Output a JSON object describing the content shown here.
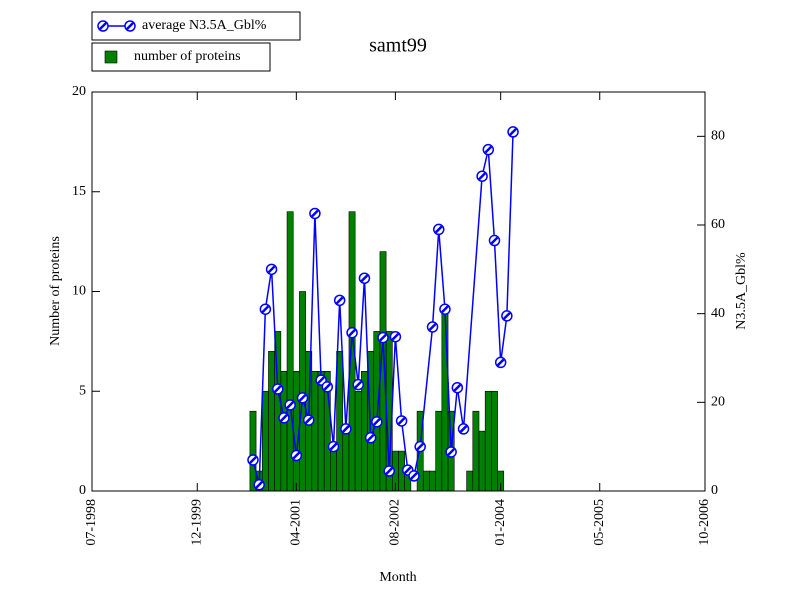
{
  "chart_data": {
    "type": "bar_line",
    "title": "samt99",
    "x_label": "Month",
    "y_label": "Number of proteins",
    "y2_label": "N3.5A_Gbl%",
    "xlim": [
      "1998-07",
      "2006-10"
    ],
    "xticks": [
      {
        "value": "1998-07",
        "label": "07-1998"
      },
      {
        "value": "1999-12",
        "label": "12-1999"
      },
      {
        "value": "2001-04",
        "label": "04-2001"
      },
      {
        "value": "2002-08",
        "label": "08-2002"
      },
      {
        "value": "2004-01",
        "label": "01-2004"
      },
      {
        "value": "2005-05",
        "label": "05-2005"
      },
      {
        "value": "2006-10",
        "label": "10-2006"
      }
    ],
    "ylim": [
      0,
      20
    ],
    "yticks": [
      0,
      5,
      10,
      15,
      20
    ],
    "y2lim": [
      0,
      90
    ],
    "y2ticks": [
      0,
      20,
      40,
      60,
      80
    ],
    "legend": "top-left",
    "series": [
      {
        "name": "number of proteins",
        "type": "bar",
        "color": "#008000",
        "x": [
          "2000-09",
          "2000-10",
          "2000-11",
          "2000-12",
          "2001-01",
          "2001-02",
          "2001-03",
          "2001-04",
          "2001-05",
          "2001-06",
          "2001-07",
          "2001-08",
          "2001-09",
          "2001-10",
          "2001-11",
          "2001-12",
          "2002-01",
          "2002-02",
          "2002-03",
          "2002-04",
          "2002-05",
          "2002-06",
          "2002-07",
          "2002-08",
          "2002-09",
          "2002-10",
          "2002-11",
          "2002-12",
          "2003-01",
          "2003-02",
          "2003-03",
          "2003-04",
          "2003-05",
          "2003-06",
          "2003-07",
          "2003-08",
          "2003-09",
          "2003-10",
          "2003-11",
          "2003-12",
          "2004-01"
        ],
        "values": [
          4,
          1,
          5,
          7,
          8,
          6,
          14,
          6,
          10,
          7,
          6,
          6,
          6,
          2,
          7,
          3,
          14,
          5,
          6,
          7,
          8,
          12,
          8,
          2,
          2,
          1,
          0,
          4,
          1,
          1,
          4,
          9,
          4,
          0,
          0,
          1,
          4,
          3,
          5,
          5,
          1
        ]
      },
      {
        "name": "average N3.5A_Gbl%",
        "type": "line",
        "color": "#0000ff",
        "axis": "y2",
        "x": [
          "2000-09",
          "2000-10",
          "2000-11",
          "2000-12",
          "2001-01",
          "2001-02",
          "2001-03",
          "2001-04",
          "2001-05",
          "2001-06",
          "2001-07",
          "2001-08",
          "2001-09",
          "2001-10",
          "2001-11",
          "2001-12",
          "2002-01",
          "2002-02",
          "2002-03",
          "2002-04",
          "2002-05",
          "2002-06",
          "2002-07",
          "2002-08",
          "2002-09",
          "2002-10",
          "2002-11",
          "2002-12",
          "2003-02",
          "2003-03",
          "2003-04",
          "2003-05",
          "2003-06",
          "2003-07",
          "2003-10",
          "2003-11",
          "2003-12",
          "2004-01",
          "2004-02",
          "2004-03"
        ],
        "values": [
          7,
          1.4,
          41,
          50,
          23,
          16.5,
          19.4,
          8,
          21,
          16,
          62.6,
          25,
          23.5,
          10,
          43,
          14,
          35.7,
          24,
          48,
          12,
          15.6,
          34.6,
          4.5,
          34.8,
          15.8,
          4.7,
          3.4,
          10,
          37,
          59,
          41,
          8.8,
          23.3,
          14,
          71,
          77,
          56.5,
          29,
          39.5,
          81
        ]
      }
    ]
  }
}
